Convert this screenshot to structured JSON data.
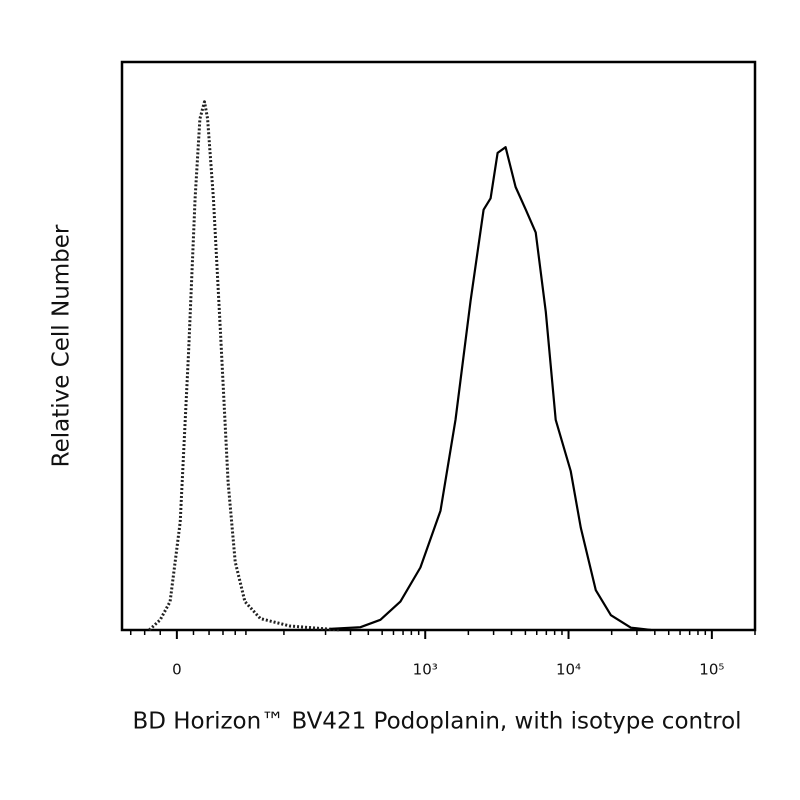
{
  "chart_data": {
    "type": "histogram-overlay",
    "xlabel": "BD Horizon™ BV421 Podoplanin, with isotype control",
    "ylabel": "Relative Cell Number",
    "xscale": "biexponential",
    "xlim": [
      -37,
      200000
    ],
    "ylim": [
      0,
      100
    ],
    "xticks": [
      0,
      {
        "value": 1000,
        "label": "10³"
      },
      {
        "value": 10000,
        "label": "10⁴"
      },
      {
        "value": 100000,
        "label": "10⁵"
      }
    ],
    "xminorticks": [
      -30,
      -20,
      -10,
      10,
      20,
      30,
      40,
      50,
      100,
      200,
      300,
      400,
      500,
      600,
      700,
      800,
      900,
      2000,
      3000,
      4000,
      5000,
      6000,
      7000,
      8000,
      9000,
      20000,
      30000,
      40000,
      50000,
      60000,
      70000,
      80000,
      90000,
      200000
    ],
    "series": [
      {
        "color": "#222222",
        "dashed": true,
        "x": [
          -17,
          -10,
          -4,
          2,
          7,
          11,
          14,
          17,
          19,
          23,
          28,
          34,
          40,
          49,
          66,
          111,
          254
        ],
        "values": [
          0,
          1.8,
          5,
          19,
          49,
          76,
          90,
          93,
          90,
          76,
          53,
          26,
          12,
          5,
          2,
          0.7,
          0
        ]
      },
      {
        "color": "#000000",
        "dashed": false,
        "x": [
          216,
          352,
          486,
          671,
          925,
          1278,
          1626,
          2072,
          2553,
          2858,
          3200,
          3637,
          4274,
          5032,
          5902,
          6938,
          8140,
          10360,
          12173,
          15503,
          19740,
          27250,
          37610
        ],
        "values": [
          0.2,
          0.5,
          1.8,
          5,
          11,
          21,
          37,
          58,
          74,
          76,
          84,
          85,
          78,
          74,
          70,
          56,
          37,
          28,
          18,
          7,
          2.6,
          0.4,
          0
        ]
      }
    ]
  }
}
